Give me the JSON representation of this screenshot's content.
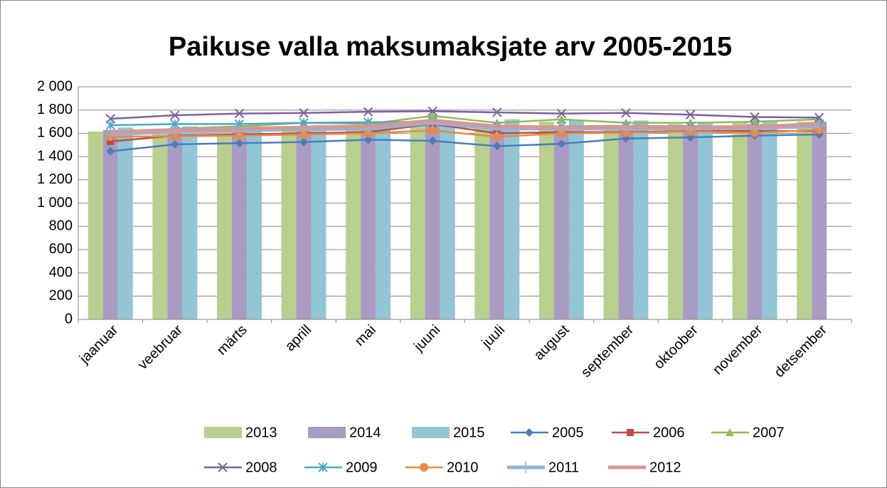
{
  "chart_data": {
    "type": "bar-line",
    "title": "Paikuse valla maksumaksjate arv 2005-2015",
    "categories": [
      "jaanuar",
      "veebruar",
      "märts",
      "aprill",
      "mai",
      "juuni",
      "juuli",
      "august",
      "september",
      "oktoober",
      "november",
      "detsember"
    ],
    "ylim": [
      0,
      2000
    ],
    "yticks": [
      0,
      200,
      400,
      600,
      800,
      {
        "value": 1000,
        "label": "1 000"
      },
      {
        "value": 1200,
        "label": "1 200"
      },
      {
        "value": 1400,
        "label": "1 400"
      },
      {
        "value": 1600,
        "label": "1 600"
      },
      {
        "value": 1800,
        "label": "1 800"
      },
      {
        "value": 2000,
        "label": "2 000"
      }
    ],
    "grid": true,
    "legend": "bottom",
    "series": [
      {
        "name": "2013",
        "type": "bar",
        "color": "#b8cf8e",
        "values": [
          1615,
          1620,
          1630,
          1640,
          1650,
          1690,
          1670,
          1700,
          1670,
          1680,
          1690,
          1700
        ]
      },
      {
        "name": "2014",
        "type": "bar",
        "color": "#a99bc4",
        "values": [
          1630,
          1640,
          1640,
          1650,
          1660,
          1700,
          1630,
          1650,
          1660,
          1670,
          1680,
          1700
        ]
      },
      {
        "name": "2015",
        "type": "bar",
        "color": "#93c6d4",
        "values": [
          1650,
          1660,
          1660,
          1670,
          1690,
          1700,
          1720,
          1710,
          1710,
          1700,
          1700,
          null
        ]
      },
      {
        "name": "2005",
        "type": "line",
        "marker": "diamond",
        "color": "#4a7ebb",
        "values": [
          1445,
          1505,
          1515,
          1525,
          1545,
          1535,
          1490,
          1510,
          1555,
          1565,
          1580,
          1590
        ]
      },
      {
        "name": "2006",
        "type": "line",
        "marker": "square",
        "color": "#be4b48",
        "values": [
          1530,
          1580,
          1590,
          1600,
          1610,
          1680,
          1600,
          1610,
          1610,
          1620,
          1620,
          1620
        ]
      },
      {
        "name": "2007",
        "type": "line",
        "marker": "triangle",
        "color": "#98b954",
        "values": [
          1600,
          1640,
          1660,
          1690,
          1680,
          1750,
          1690,
          1720,
          1690,
          1690,
          1700,
          1720
        ]
      },
      {
        "name": "2008",
        "type": "line",
        "marker": "x",
        "color": "#7d60a0",
        "values": [
          1725,
          1755,
          1770,
          1775,
          1785,
          1790,
          1780,
          1770,
          1775,
          1760,
          1740,
          1735
        ]
      },
      {
        "name": "2009",
        "type": "line",
        "marker": "star",
        "color": "#46aac5",
        "values": [
          1670,
          1680,
          1680,
          1690,
          1695,
          1700,
          1660,
          1660,
          1665,
          1660,
          1660,
          1680
        ]
      },
      {
        "name": "2010",
        "type": "line",
        "marker": "circle",
        "color": "#e98a3f",
        "values": [
          1570,
          1575,
          1580,
          1590,
          1600,
          1625,
          1570,
          1600,
          1605,
          1615,
          1605,
          1630
        ]
      },
      {
        "name": "2011",
        "type": "line",
        "marker": "plus",
        "color": "#95b3d7",
        "values": [
          1590,
          1615,
          1625,
          1635,
          1640,
          1690,
          1640,
          1640,
          1640,
          1640,
          1645,
          1660
        ]
      },
      {
        "name": "2012",
        "type": "line",
        "marker": "none",
        "color": "#d99694",
        "values": [
          1610,
          1630,
          1640,
          1650,
          1660,
          1710,
          1660,
          1650,
          1655,
          1650,
          1655,
          1680
        ]
      }
    ]
  }
}
